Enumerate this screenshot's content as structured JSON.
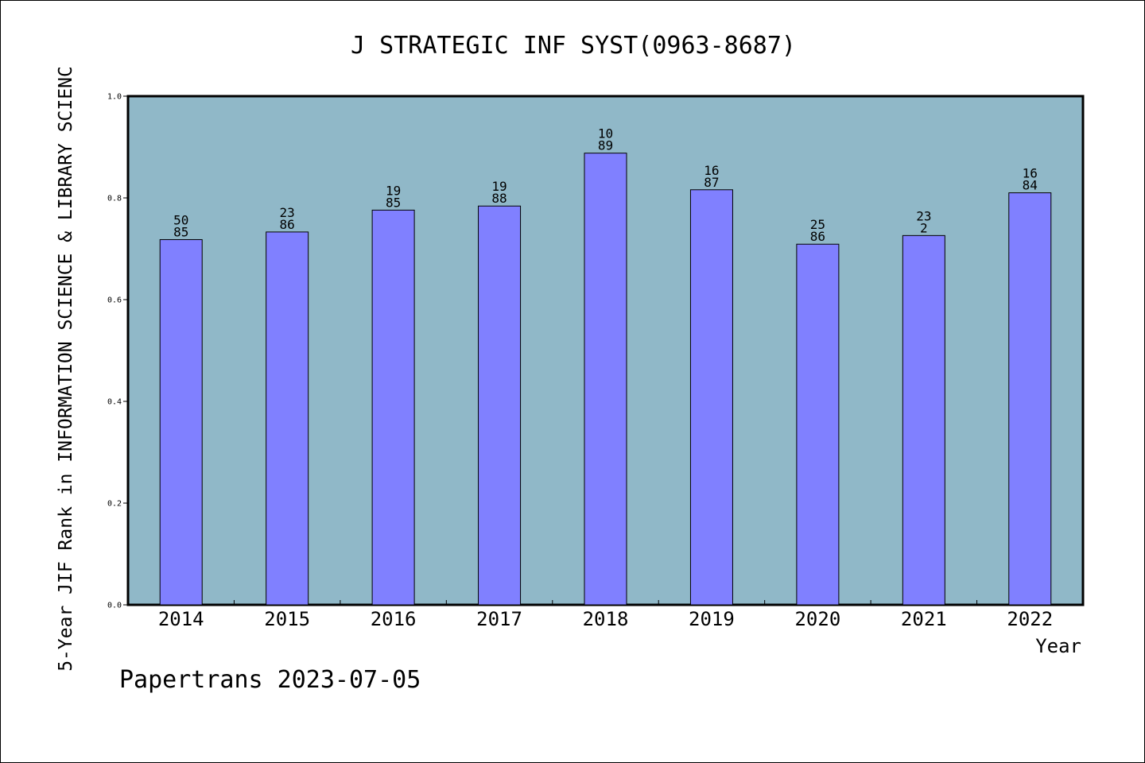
{
  "chart_data": {
    "type": "bar",
    "title": "J STRATEGIC INF SYST(0963-8687)",
    "xlabel": "Year",
    "ylabel": "5-Year JIF Rank in INFORMATION SCIENCE & LIBRARY SCIENC",
    "categories": [
      "2014",
      "2015",
      "2016",
      "2017",
      "2018",
      "2019",
      "2020",
      "2021",
      "2022"
    ],
    "values": [
      0.718,
      0.733,
      0.776,
      0.784,
      0.888,
      0.816,
      0.709,
      0.726,
      0.81
    ],
    "data_labels": [
      [
        "50",
        "85"
      ],
      [
        "23",
        "86"
      ],
      [
        "19",
        "85"
      ],
      [
        "19",
        "88"
      ],
      [
        "10",
        "89"
      ],
      [
        "16",
        "87"
      ],
      [
        "25",
        "86"
      ],
      [
        "23",
        "2"
      ],
      [
        "16",
        "84"
      ]
    ],
    "ylim": [
      0,
      1.0
    ],
    "yticks": [
      "0.0",
      "0.2",
      "0.4",
      "0.6",
      "0.8",
      "1.0"
    ],
    "grid": false,
    "colors": {
      "plot_background": "#90b8c8",
      "bar_fill": "#8080ff",
      "bar_stroke": "#000000"
    }
  },
  "footer": "Papertrans 2023-07-05"
}
